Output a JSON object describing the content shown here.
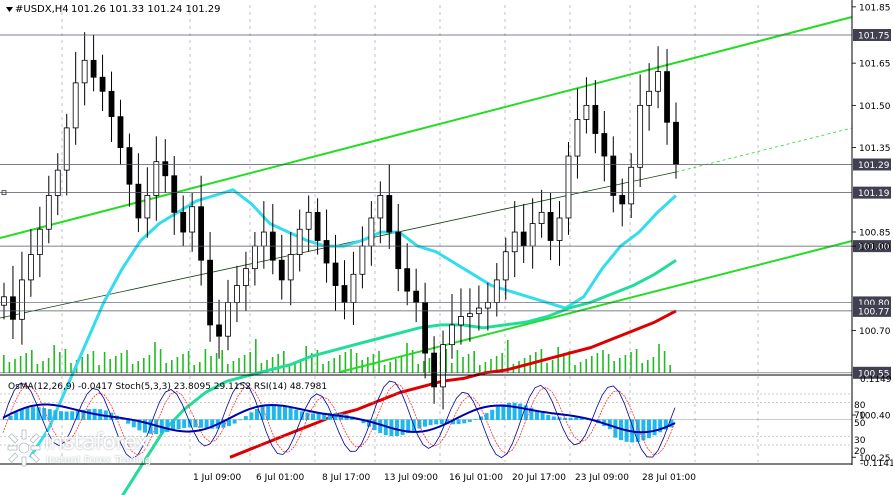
{
  "header": {
    "symbol": "#USDX,H4",
    "ohlc": "101.26 101.33 101.24 101.29",
    "osc_label": "OsMA(12,26,9) -0.0417   Stoch(5,3,3) 23.8095 29.1152   RSI(14) 48.7981"
  },
  "colors": {
    "candle": "#000000",
    "ma_fast": "#33ddee",
    "ma_mid": "#22dd99",
    "ma_slow": "#dd0000",
    "channel": "#22dd22",
    "volume": "#22bb22",
    "osma": "#1fb8ee",
    "stoch_main": "#000099",
    "stoch_signal": "#ff3333",
    "label_box": "#404050"
  },
  "price_axis": {
    "ticks": [
      "101.85",
      "101.65",
      "101.50",
      "101.35",
      "101.00",
      "100.85",
      "100.70",
      "100.40",
      "100.25"
    ],
    "boxes": [
      "101.75",
      "101.29",
      "101.19",
      "101.00",
      "100.80",
      "100.77",
      "100.55"
    ]
  },
  "osc_axis": {
    "labels": [
      "0.1149",
      "80",
      "70",
      "50",
      "30",
      "20",
      "-0.1141"
    ],
    "levels": [
      80,
      70,
      50,
      30,
      20
    ]
  },
  "time_axis": [
    "1 Jul 09:00",
    "6 Jul 01:00",
    "8 Jul 17:00",
    "13 Jul 09:00",
    "16 Jul 01:00",
    "20 Jul 17:00",
    "23 Jul 09:00",
    "28 Jul 01:00"
  ],
  "watermark": {
    "name": "instaforex",
    "tagline": "Instant Forex Trading"
  },
  "icons": {
    "dropdown": "triangle-down-icon",
    "logo": "instaforex-logo-icon"
  },
  "chart_data": {
    "type": "candlestick",
    "title": "#USDX,H4",
    "last_close": 101.29,
    "closes": [
      100.82,
      100.74,
      100.88,
      100.97,
      101.06,
      101.18,
      101.27,
      101.42,
      101.58,
      101.66,
      101.6,
      101.55,
      101.46,
      101.35,
      101.22,
      101.1,
      101.18,
      101.3,
      101.25,
      101.12,
      101.05,
      101.14,
      100.95,
      100.72,
      100.68,
      100.8,
      100.86,
      100.92,
      101.0,
      101.05,
      100.95,
      100.88,
      100.97,
      101.06,
      101.12,
      101.02,
      100.94,
      100.86,
      100.8,
      100.9,
      101.0,
      101.1,
      101.18,
      101.05,
      100.92,
      100.84,
      100.8,
      100.62,
      100.5,
      100.65,
      100.72,
      100.75,
      100.76,
      100.78,
      100.8,
      100.88,
      100.98,
      101.05,
      101.0,
      101.08,
      101.12,
      101.02,
      101.1,
      101.32,
      101.45,
      101.5,
      101.4,
      101.32,
      101.18,
      101.15,
      101.28,
      101.5,
      101.55,
      101.62,
      101.44,
      101.29
    ],
    "series": [
      {
        "name": "",
        "type": "ma",
        "values": [
          100.25,
          100.35,
          100.5,
          100.65,
          100.8,
          100.92,
          101.02,
          101.08,
          101.12,
          101.16,
          101.18,
          101.2,
          101.15,
          101.08,
          101.05,
          101.02,
          101.0,
          101.0,
          101.02,
          101.05,
          101.05,
          101.0,
          100.98,
          100.94,
          100.9,
          100.86,
          100.84,
          100.82,
          100.8,
          100.78,
          100.82,
          100.92,
          101.0,
          101.05,
          101.12,
          101.18
        ]
      },
      {
        "name": "",
        "type": "ma",
        "values": [
          100.1,
          100.22,
          100.34,
          100.42,
          100.48,
          100.52,
          100.54,
          100.56,
          100.58,
          100.61,
          100.63,
          100.65,
          100.67,
          100.69,
          100.71,
          100.72,
          100.72,
          100.71,
          100.72,
          100.73,
          100.75,
          100.78,
          100.8,
          100.83,
          100.86,
          100.9,
          100.95
        ]
      },
      {
        "name": "",
        "type": "ma",
        "values": [
          100.25,
          100.28,
          100.31,
          100.34,
          100.37,
          100.4,
          100.42,
          100.45,
          100.48,
          100.5,
          100.52,
          100.53,
          100.55,
          100.56,
          100.58,
          100.6,
          100.62,
          100.64,
          100.67,
          100.7,
          100.73,
          100.77
        ]
      }
    ],
    "indicator_values": {
      "osma": -0.0417,
      "stoch_main": 23.8095,
      "stoch_signal": 29.1152,
      "rsi": 48.7981
    }
  }
}
